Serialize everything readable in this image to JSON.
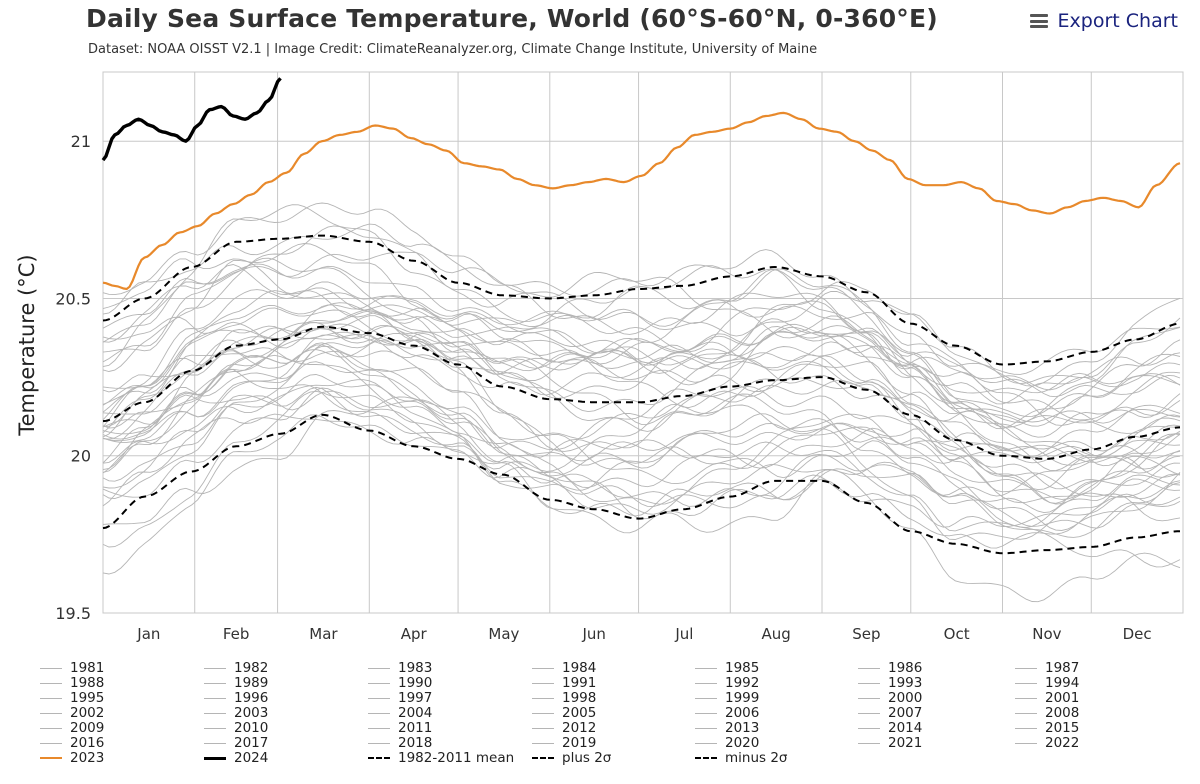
{
  "header": {
    "title": "Daily Sea Surface Temperature, World (60°S-60°N, 0-360°E)",
    "subtitle": "Dataset: NOAA OISST V2.1 | Image Credit: ClimateReanalyzer.org, Climate Change Institute, University of Maine",
    "export_label": "Export Chart",
    "export_icon": "hamburger-menu-icon"
  },
  "colors": {
    "grid": "#c8c8c8",
    "historical": "#b5b5b5",
    "y2023": "#e8892b",
    "y2024": "#000000",
    "stats": "#000000"
  },
  "chart_data": {
    "type": "line",
    "title": "Daily Sea Surface Temperature, World (60°S-60°N, 0-360°E)",
    "xlabel": "",
    "ylabel": "Temperature (°C)",
    "x_unit": "day of year",
    "xlim": [
      1,
      366
    ],
    "ylim": [
      19.5,
      21.22
    ],
    "yticks": [
      19.5,
      20,
      20.5,
      21
    ],
    "ytick_labels": [
      "19.5",
      "20",
      "20.5",
      "21"
    ],
    "month_labels": [
      "Jan",
      "Feb",
      "Mar",
      "Apr",
      "May",
      "Jun",
      "Jul",
      "Aug",
      "Sep",
      "Oct",
      "Nov",
      "Dec"
    ],
    "grid": true,
    "legend_position": "bottom",
    "series": [
      {
        "name": "2023",
        "role": "highlight",
        "x": [
          1,
          5,
          9,
          15,
          21,
          27,
          33,
          39,
          45,
          51,
          57,
          63,
          69,
          75,
          81,
          87,
          93,
          99,
          105,
          111,
          117,
          123,
          129,
          135,
          141,
          147,
          153,
          159,
          165,
          171,
          177,
          183,
          189,
          195,
          201,
          207,
          213,
          219,
          225,
          231,
          237,
          243,
          249,
          255,
          261,
          267,
          273,
          279,
          285,
          291,
          297,
          303,
          309,
          315,
          321,
          327,
          333,
          339,
          345,
          351,
          357,
          365
        ],
        "y": [
          20.55,
          20.54,
          20.53,
          20.63,
          20.67,
          20.71,
          20.73,
          20.77,
          20.8,
          20.83,
          20.87,
          20.9,
          20.96,
          21.0,
          21.02,
          21.03,
          21.05,
          21.04,
          21.01,
          20.99,
          20.97,
          20.93,
          20.92,
          20.91,
          20.88,
          20.86,
          20.85,
          20.86,
          20.87,
          20.88,
          20.87,
          20.89,
          20.93,
          20.98,
          21.02,
          21.03,
          21.04,
          21.06,
          21.08,
          21.09,
          21.07,
          21.04,
          21.03,
          21.0,
          20.97,
          20.94,
          20.88,
          20.86,
          20.86,
          20.87,
          20.85,
          20.81,
          20.8,
          20.78,
          20.77,
          20.79,
          20.81,
          20.82,
          20.81,
          20.79,
          20.86,
          20.93
        ]
      },
      {
        "name": "2024",
        "role": "current",
        "x": [
          1,
          5,
          9,
          13,
          17,
          21,
          25,
          29,
          33,
          37,
          41,
          45,
          49,
          53,
          57,
          61
        ],
        "y": [
          20.94,
          21.02,
          21.05,
          21.07,
          21.05,
          21.03,
          21.02,
          21.0,
          21.05,
          21.1,
          21.11,
          21.08,
          21.07,
          21.09,
          21.13,
          21.2
        ]
      },
      {
        "name": "1982-2011 mean",
        "role": "mean",
        "x": [
          1,
          15,
          31,
          46,
          61,
          75,
          91,
          106,
          121,
          136,
          152,
          167,
          182,
          197,
          213,
          228,
          244,
          259,
          274,
          289,
          305,
          320,
          335,
          350,
          365
        ],
        "y": [
          20.11,
          20.17,
          20.27,
          20.35,
          20.37,
          20.41,
          20.39,
          20.35,
          20.29,
          20.22,
          20.18,
          20.17,
          20.17,
          20.19,
          20.22,
          20.24,
          20.25,
          20.21,
          20.13,
          20.05,
          20.0,
          19.99,
          20.02,
          20.06,
          20.09
        ]
      },
      {
        "name": "plus 2σ",
        "role": "plus",
        "x": [
          1,
          15,
          31,
          46,
          61,
          75,
          91,
          106,
          121,
          136,
          152,
          167,
          182,
          197,
          213,
          228,
          244,
          259,
          274,
          289,
          305,
          320,
          335,
          350,
          365
        ],
        "y": [
          20.43,
          20.5,
          20.6,
          20.68,
          20.69,
          20.7,
          20.68,
          20.62,
          20.55,
          20.51,
          20.5,
          20.51,
          20.53,
          20.54,
          20.57,
          20.6,
          20.57,
          20.52,
          20.42,
          20.35,
          20.29,
          20.3,
          20.33,
          20.37,
          20.42
        ]
      },
      {
        "name": "minus 2σ",
        "role": "minus",
        "x": [
          1,
          15,
          31,
          46,
          61,
          75,
          91,
          106,
          121,
          136,
          152,
          167,
          182,
          197,
          213,
          228,
          244,
          259,
          274,
          289,
          305,
          320,
          335,
          350,
          365
        ],
        "y": [
          19.77,
          19.87,
          19.95,
          20.03,
          20.07,
          20.13,
          20.08,
          20.03,
          19.99,
          19.94,
          19.86,
          19.83,
          19.8,
          19.83,
          19.87,
          19.92,
          19.92,
          19.85,
          19.76,
          19.72,
          19.69,
          19.7,
          19.71,
          19.74,
          19.76
        ]
      }
    ],
    "historical_years": [
      "1981",
      "1982",
      "1983",
      "1984",
      "1985",
      "1986",
      "1987",
      "1988",
      "1989",
      "1990",
      "1991",
      "1992",
      "1993",
      "1994",
      "1995",
      "1996",
      "1997",
      "1998",
      "1999",
      "2000",
      "2001",
      "2002",
      "2003",
      "2004",
      "2005",
      "2006",
      "2007",
      "2008",
      "2009",
      "2010",
      "2011",
      "2012",
      "2013",
      "2014",
      "2015",
      "2016",
      "2017",
      "2018",
      "2019",
      "2020",
      "2021",
      "2022"
    ],
    "historical_note": "42 thin grey lines (1981-2022) fill the band between the minus 2σ and plus 2σ curves"
  },
  "legend": {
    "items": [
      {
        "label": "1981",
        "style": "gray"
      },
      {
        "label": "1982",
        "style": "gray"
      },
      {
        "label": "1983",
        "style": "gray"
      },
      {
        "label": "1984",
        "style": "gray"
      },
      {
        "label": "1985",
        "style": "gray"
      },
      {
        "label": "1986",
        "style": "gray"
      },
      {
        "label": "1987",
        "style": "gray"
      },
      {
        "label": "1988",
        "style": "gray"
      },
      {
        "label": "1989",
        "style": "gray"
      },
      {
        "label": "1990",
        "style": "gray"
      },
      {
        "label": "1991",
        "style": "gray"
      },
      {
        "label": "1992",
        "style": "gray"
      },
      {
        "label": "1993",
        "style": "gray"
      },
      {
        "label": "1994",
        "style": "gray"
      },
      {
        "label": "1995",
        "style": "gray"
      },
      {
        "label": "1996",
        "style": "gray"
      },
      {
        "label": "1997",
        "style": "gray"
      },
      {
        "label": "1998",
        "style": "gray"
      },
      {
        "label": "1999",
        "style": "gray"
      },
      {
        "label": "2000",
        "style": "gray"
      },
      {
        "label": "2001",
        "style": "gray"
      },
      {
        "label": "2002",
        "style": "gray"
      },
      {
        "label": "2003",
        "style": "gray"
      },
      {
        "label": "2004",
        "style": "gray"
      },
      {
        "label": "2005",
        "style": "gray"
      },
      {
        "label": "2006",
        "style": "gray"
      },
      {
        "label": "2007",
        "style": "gray"
      },
      {
        "label": "2008",
        "style": "gray"
      },
      {
        "label": "2009",
        "style": "gray"
      },
      {
        "label": "2010",
        "style": "gray"
      },
      {
        "label": "2011",
        "style": "gray"
      },
      {
        "label": "2012",
        "style": "gray"
      },
      {
        "label": "2013",
        "style": "gray"
      },
      {
        "label": "2014",
        "style": "gray"
      },
      {
        "label": "2015",
        "style": "gray"
      },
      {
        "label": "2016",
        "style": "gray"
      },
      {
        "label": "2017",
        "style": "gray"
      },
      {
        "label": "2018",
        "style": "gray"
      },
      {
        "label": "2019",
        "style": "gray"
      },
      {
        "label": "2020",
        "style": "gray"
      },
      {
        "label": "2021",
        "style": "gray"
      },
      {
        "label": "2022",
        "style": "gray"
      },
      {
        "label": "2023",
        "style": "orange"
      },
      {
        "label": "2024",
        "style": "black"
      },
      {
        "label": "1982-2011 mean",
        "style": "dashed"
      },
      {
        "label": "plus 2σ",
        "style": "dashed"
      },
      {
        "label": "minus 2σ",
        "style": "dashed"
      }
    ]
  }
}
